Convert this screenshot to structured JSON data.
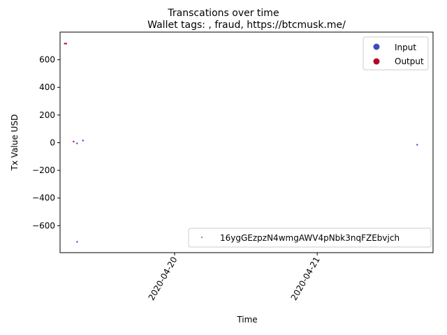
{
  "chart_data": {
    "type": "scatter",
    "suptitle": "Transcations over time",
    "title": "Wallet tags: , fraud, https://btcmusk.me/",
    "xlabel": "Time",
    "ylabel": "Tx Value USD",
    "x_range": [
      "2020-04-19 04:43",
      "2020-04-21 19:30"
    ],
    "ylim": [
      -795,
      800
    ],
    "y_ticks": [
      600,
      400,
      200,
      0,
      -200,
      -400,
      -600
    ],
    "y_tick_labels": [
      "600",
      "400",
      "200",
      "0",
      "−200",
      "−400",
      "−600"
    ],
    "x_ticks": [
      "2020-04-20",
      "2020-04-21"
    ],
    "grid": false,
    "colors": {
      "input": "#3b4cc0",
      "output": "#b40426",
      "wallet": "#1f77b4"
    },
    "series": [
      {
        "name": "Input",
        "points": [
          {
            "x": "2020-04-19 07:35",
            "y": -717
          },
          {
            "x": "2020-04-19 07:35",
            "y": -5
          },
          {
            "x": "2020-04-19 08:35",
            "y": 16
          },
          {
            "x": "2020-04-21 16:50",
            "y": -15
          }
        ]
      },
      {
        "name": "Output",
        "points": [
          {
            "x": "2020-04-19 05:30",
            "y": 717
          },
          {
            "x": "2020-04-19 05:45",
            "y": 717
          },
          {
            "x": "2020-04-19 07:00",
            "y": 8
          }
        ]
      }
    ],
    "legend_top_right": [
      "Input",
      "Output"
    ],
    "legend_bottom_right": [
      "16ygGEzpzN4wmgAWV4pNbk3nqFZEbvjch"
    ]
  }
}
